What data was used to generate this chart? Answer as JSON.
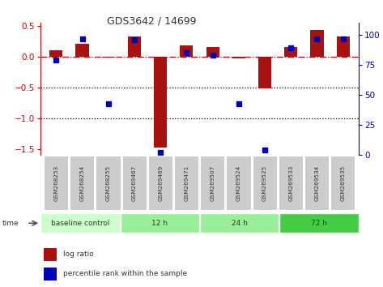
{
  "title": "GDS3642 / 14699",
  "samples": [
    "GSM268253",
    "GSM268254",
    "GSM268255",
    "GSM269467",
    "GSM269469",
    "GSM269471",
    "GSM269507",
    "GSM269524",
    "GSM269525",
    "GSM269533",
    "GSM269534",
    "GSM269535"
  ],
  "log_ratio": [
    0.11,
    0.21,
    -0.01,
    0.33,
    -1.48,
    0.19,
    0.16,
    -0.03,
    -0.52,
    0.16,
    0.44,
    0.33
  ],
  "percentile_rank": [
    79,
    97,
    43,
    96,
    2,
    85,
    83,
    43,
    4,
    89,
    97,
    97
  ],
  "groups": [
    {
      "label": "baseline control",
      "start": 0,
      "end": 3,
      "color": "#ccffcc"
    },
    {
      "label": "12 h",
      "start": 3,
      "end": 6,
      "color": "#99ee99"
    },
    {
      "label": "24 h",
      "start": 6,
      "end": 9,
      "color": "#99ee99"
    },
    {
      "label": "72 h",
      "start": 9,
      "end": 12,
      "color": "#44cc44"
    }
  ],
  "bar_color": "#aa1111",
  "square_color": "#0000bb",
  "ylim_left": [
    -1.6,
    0.55
  ],
  "ylim_right": [
    0,
    110
  ],
  "yticks_left": [
    0.5,
    0.0,
    -0.5,
    -1.0,
    -1.5
  ],
  "yticks_right": [
    100,
    75,
    50,
    25,
    0
  ],
  "bg_color": "#ffffff",
  "hline_color": "#cc0000",
  "dotted_color": "#000000",
  "sample_box_color": "#cccccc",
  "bar_width": 0.5
}
